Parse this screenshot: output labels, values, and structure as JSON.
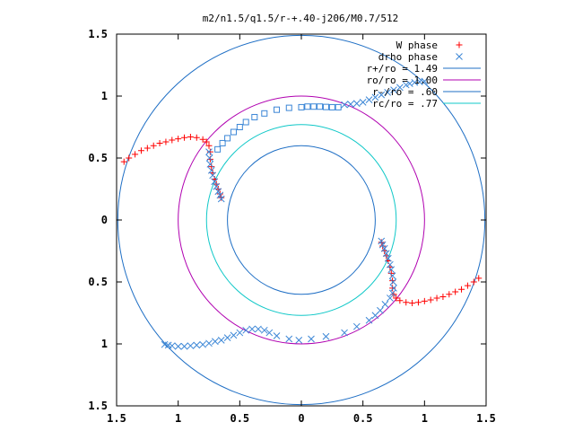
{
  "chart_data": {
    "type": "scatter",
    "title": "m2/n1.5/q1.5/r-+.40-j206/M0.7/512",
    "xlabel": "",
    "ylabel": "",
    "xlim": [
      -1.5,
      1.5
    ],
    "ylim": [
      -1.5,
      1.5
    ],
    "x_tick_values": [
      -1.5,
      -1,
      -0.5,
      0,
      0.5,
      1,
      1.5
    ],
    "x_tick_labels": [
      "1.5",
      "1",
      "0.5",
      "0",
      "0.5",
      "1",
      "1.5"
    ],
    "y_tick_values": [
      1.5,
      1,
      0.5,
      0,
      -0.5,
      -1,
      -1.5
    ],
    "y_tick_labels": [
      "1.5",
      "1",
      "0.5",
      "0",
      "0.5",
      "1",
      "1.5"
    ],
    "grid": false,
    "legend_position": "top-right",
    "series": [
      {
        "name": "W phase",
        "kind": "points",
        "marker": "plus",
        "color": "#ff0000",
        "points": [
          [
            -1.44,
            0.47
          ],
          [
            -1.4,
            0.5
          ],
          [
            -1.35,
            0.53
          ],
          [
            -1.3,
            0.56
          ],
          [
            -1.25,
            0.58
          ],
          [
            -1.2,
            0.6
          ],
          [
            -1.15,
            0.62
          ],
          [
            -1.1,
            0.63
          ],
          [
            -1.05,
            0.645
          ],
          [
            -1.0,
            0.655
          ],
          [
            -0.95,
            0.665
          ],
          [
            -0.9,
            0.67
          ],
          [
            -0.85,
            0.665
          ],
          [
            -0.8,
            0.65
          ],
          [
            -0.77,
            0.63
          ],
          [
            -0.75,
            0.6
          ],
          [
            -0.74,
            0.55
          ],
          [
            -0.74,
            0.49
          ],
          [
            -0.73,
            0.43
          ],
          [
            -0.72,
            0.38
          ],
          [
            -0.705,
            0.33
          ],
          [
            -0.69,
            0.29
          ],
          [
            -0.675,
            0.25
          ],
          [
            -0.66,
            0.21
          ],
          [
            -0.65,
            0.18
          ],
          [
            1.44,
            -0.47
          ],
          [
            1.4,
            -0.5
          ],
          [
            1.35,
            -0.53
          ],
          [
            1.3,
            -0.56
          ],
          [
            1.25,
            -0.58
          ],
          [
            1.2,
            -0.6
          ],
          [
            1.15,
            -0.62
          ],
          [
            1.1,
            -0.63
          ],
          [
            1.05,
            -0.645
          ],
          [
            1.0,
            -0.655
          ],
          [
            0.95,
            -0.665
          ],
          [
            0.9,
            -0.67
          ],
          [
            0.85,
            -0.665
          ],
          [
            0.8,
            -0.65
          ],
          [
            0.77,
            -0.63
          ],
          [
            0.75,
            -0.6
          ],
          [
            0.74,
            -0.55
          ],
          [
            0.74,
            -0.49
          ],
          [
            0.73,
            -0.43
          ],
          [
            0.72,
            -0.38
          ],
          [
            0.705,
            -0.33
          ],
          [
            0.69,
            -0.29
          ],
          [
            0.675,
            -0.25
          ],
          [
            0.66,
            -0.21
          ],
          [
            0.65,
            -0.18
          ]
        ]
      },
      {
        "name": "drho phase",
        "kind": "points",
        "marker": "cross",
        "color": "#3b86d6",
        "points": [
          [
            -0.75,
            0.55
          ],
          [
            -0.745,
            0.5
          ],
          [
            -0.74,
            0.45
          ],
          [
            -0.73,
            0.4
          ],
          [
            -0.72,
            0.36
          ],
          [
            -0.705,
            0.31
          ],
          [
            -0.69,
            0.27
          ],
          [
            -0.675,
            0.23
          ],
          [
            -0.66,
            0.2
          ],
          [
            -0.65,
            0.17
          ],
          [
            0.35,
            0.93
          ],
          [
            0.4,
            0.935
          ],
          [
            0.45,
            0.94
          ],
          [
            0.5,
            0.95
          ],
          [
            0.55,
            0.97
          ],
          [
            0.6,
            0.99
          ],
          [
            0.65,
            1.01
          ],
          [
            0.7,
            1.03
          ],
          [
            0.75,
            1.05
          ],
          [
            0.8,
            1.07
          ],
          [
            0.85,
            1.09
          ],
          [
            0.88,
            1.1
          ],
          [
            0.92,
            1.11
          ],
          [
            0.96,
            1.115
          ],
          [
            1.0,
            1.12
          ],
          [
            0.65,
            -0.17
          ],
          [
            0.66,
            -0.2
          ],
          [
            0.675,
            -0.23
          ],
          [
            0.69,
            -0.27
          ],
          [
            0.705,
            -0.31
          ],
          [
            0.72,
            -0.36
          ],
          [
            0.73,
            -0.4
          ],
          [
            0.74,
            -0.45
          ],
          [
            0.745,
            -0.5
          ],
          [
            0.75,
            -0.55
          ],
          [
            0.74,
            -0.59
          ],
          [
            0.72,
            -0.63
          ],
          [
            0.68,
            -0.68
          ],
          [
            0.64,
            -0.73
          ],
          [
            0.6,
            -0.77
          ],
          [
            0.55,
            -0.81
          ],
          [
            0.45,
            -0.86
          ],
          [
            0.35,
            -0.91
          ],
          [
            0.2,
            -0.94
          ],
          [
            0.08,
            -0.96
          ],
          [
            -0.02,
            -0.97
          ],
          [
            -0.1,
            -0.96
          ],
          [
            -0.2,
            -0.935
          ],
          [
            -0.26,
            -0.91
          ],
          [
            -0.3,
            -0.89
          ],
          [
            -0.35,
            -0.88
          ],
          [
            -0.4,
            -0.88
          ],
          [
            -0.45,
            -0.89
          ],
          [
            -0.5,
            -0.91
          ],
          [
            -0.55,
            -0.93
          ],
          [
            -0.6,
            -0.95
          ],
          [
            -0.65,
            -0.97
          ],
          [
            -0.7,
            -0.98
          ],
          [
            -0.75,
            -0.995
          ],
          [
            -0.8,
            -1.005
          ],
          [
            -0.85,
            -1.01
          ],
          [
            -0.9,
            -1.015
          ],
          [
            -0.95,
            -1.02
          ],
          [
            -1.0,
            -1.02
          ],
          [
            -1.05,
            -1.015
          ],
          [
            -1.08,
            -1.01
          ],
          [
            -1.11,
            -1.005
          ]
        ]
      },
      {
        "name": "",
        "kind": "points",
        "marker": "square",
        "color": "#3b86d6",
        "points": [
          [
            -0.68,
            0.57
          ],
          [
            -0.64,
            0.62
          ],
          [
            -0.6,
            0.66
          ],
          [
            -0.55,
            0.71
          ],
          [
            -0.5,
            0.75
          ],
          [
            -0.45,
            0.79
          ],
          [
            -0.38,
            0.83
          ],
          [
            -0.3,
            0.86
          ],
          [
            -0.2,
            0.89
          ],
          [
            -0.1,
            0.905
          ],
          [
            0.0,
            0.91
          ],
          [
            0.05,
            0.915
          ],
          [
            0.1,
            0.915
          ],
          [
            0.15,
            0.915
          ],
          [
            0.2,
            0.912
          ],
          [
            0.25,
            0.91
          ],
          [
            0.3,
            0.91
          ]
        ]
      },
      {
        "name": "r+/ro = 1.49",
        "kind": "circle",
        "radius": 1.49,
        "color": "#1f6fc5"
      },
      {
        "name": "ro/ro = 1.00",
        "kind": "circle",
        "radius": 1.0,
        "color": "#b000b0"
      },
      {
        "name": "r-/ro = .60",
        "kind": "circle",
        "radius": 0.6,
        "color": "#1f6fc5"
      },
      {
        "name": "rc/ro = .77",
        "kind": "circle",
        "radius": 0.77,
        "color": "#10c8c8"
      }
    ]
  }
}
